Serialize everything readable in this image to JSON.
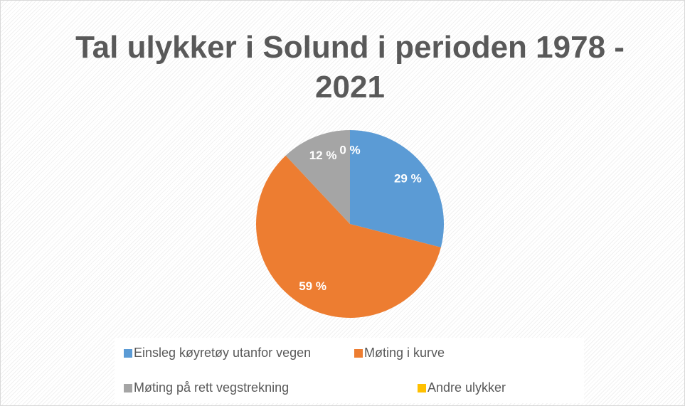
{
  "chart_data": {
    "type": "pie",
    "title": "Tal ulykker i Solund i perioden 1978 - 2021",
    "categories": [
      "Einsleg køyretøy utanfor vegen",
      "Møting i kurve",
      "Møting på rett vegstrekning",
      "Andre ulykker"
    ],
    "values": [
      29,
      59,
      12,
      0
    ],
    "value_labels": [
      "29 %",
      "59 %",
      "12 %",
      "0 %"
    ],
    "colors": [
      "#5b9bd5",
      "#ed7d31",
      "#a5a5a5",
      "#ffc000"
    ],
    "legend": "bottom"
  }
}
